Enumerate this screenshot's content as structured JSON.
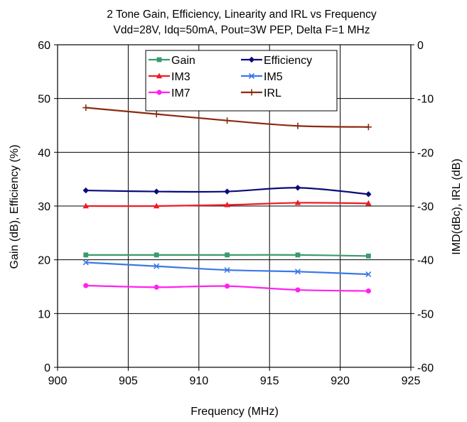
{
  "chart_data": {
    "type": "line",
    "title": "2 Tone Gain, Efficiency, Linearity and IRL vs Frequency",
    "subtitle": "Vdd=28V, Idq=50mA, Pout=3W PEP, Delta F=1 MHz",
    "xlabel": "Frequency (MHz)",
    "ylabel": "Gain (dB), Efficiency (%)",
    "y2label": "IMD(dBc), IRL (dB)",
    "xlim": [
      900,
      925
    ],
    "ylim": [
      0,
      60
    ],
    "y2lim": [
      -60,
      0
    ],
    "x_ticks": [
      "900",
      "905",
      "910",
      "915",
      "920",
      "925"
    ],
    "y_ticks": [
      "0",
      "10",
      "20",
      "30",
      "40",
      "50",
      "60"
    ],
    "y2_ticks": [
      "-60",
      "-50",
      "-40",
      "-30",
      "-20",
      "-10",
      "0"
    ],
    "grid": true,
    "legend_position": "top-center",
    "x": [
      902,
      907,
      912,
      917,
      922
    ],
    "series": [
      {
        "name": "Gain",
        "axis": "left",
        "color": "#3a9a6e",
        "marker": "square",
        "values": [
          20.9,
          20.9,
          20.9,
          20.9,
          20.7
        ]
      },
      {
        "name": "Efficiency",
        "axis": "left",
        "color": "#0a0a7a",
        "marker": "diamond",
        "values": [
          32.9,
          32.7,
          32.7,
          33.4,
          32.2
        ]
      },
      {
        "name": "IM3",
        "axis": "right",
        "color": "#ee1c25",
        "marker": "triangle",
        "values": [
          -30.0,
          -30.0,
          -29.8,
          -29.4,
          -29.5
        ]
      },
      {
        "name": "IM5",
        "axis": "right",
        "color": "#3b78e7",
        "marker": "x",
        "values": [
          -40.5,
          -41.2,
          -41.9,
          -42.2,
          -42.7
        ]
      },
      {
        "name": "IM7",
        "axis": "right",
        "color": "#ff22ee",
        "marker": "circle",
        "values": [
          -44.8,
          -45.1,
          -44.9,
          -45.6,
          -45.8
        ]
      },
      {
        "name": "IRL",
        "axis": "right",
        "color": "#8b2a10",
        "marker": "plus",
        "values": [
          -11.7,
          -12.9,
          -14.1,
          -15.1,
          -15.3
        ]
      }
    ]
  }
}
